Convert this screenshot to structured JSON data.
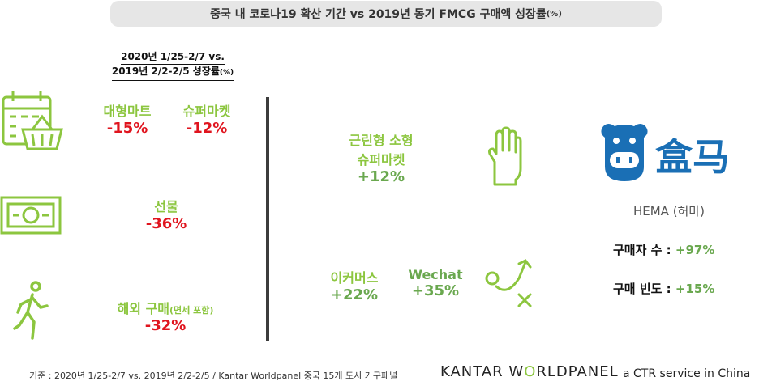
{
  "title": {
    "main": "중국 내 코로나19 확산 기간 vs 2019년 동기 FMCG 구매액 성장률",
    "suffix": "(%)"
  },
  "period": {
    "line1": "2020년 1/25-2/7 vs.",
    "line2": "2019년 2/2-2/5 성장률",
    "unit": "(%)"
  },
  "left": {
    "hypermarket": {
      "label": "대형마트",
      "value": "-15%"
    },
    "supermarket": {
      "label": "슈퍼마켓",
      "value": "-12%"
    },
    "gift": {
      "label": "선물",
      "value": "-36%"
    },
    "overseas": {
      "label": "해외 구매",
      "note": "(면세 포함)",
      "value": "-32%"
    }
  },
  "middle": {
    "neighborhood": {
      "label_line1": "근린형 소형",
      "label_line2": "슈퍼마켓",
      "value": "+12%"
    },
    "ecommerce": {
      "label": "이커머스",
      "value": "+22%"
    },
    "wechat": {
      "label": "Wechat",
      "value": "+35%"
    }
  },
  "hema": {
    "logo_text": "盒马",
    "name": "HEMA (허마)",
    "buyers_label": "구매자 수 :",
    "buyers_value": "+97%",
    "frequency_label": "구매 빈도 :",
    "frequency_value": "+15%"
  },
  "footer": {
    "source": "기준 : 2020년 1/25-2/7 vs. 2019년 2/2-2/5 / Kantar Worldpanel 중국 15개 도시 가구패널",
    "brand_part1": "KANTAR W",
    "brand_o": "O",
    "brand_part2": "RLDPANEL",
    "tagline": "a CTR service in China"
  },
  "colors": {
    "green": "#8cc63f",
    "dark_green": "#6aa84f",
    "red": "#e0141e",
    "hema_blue": "#1a6fb5"
  },
  "icons": [
    "calendar-basket-icon",
    "banknote-icon",
    "runner-icon",
    "hand-icon",
    "strategy-play-icon",
    "hema-hippo-logo"
  ]
}
